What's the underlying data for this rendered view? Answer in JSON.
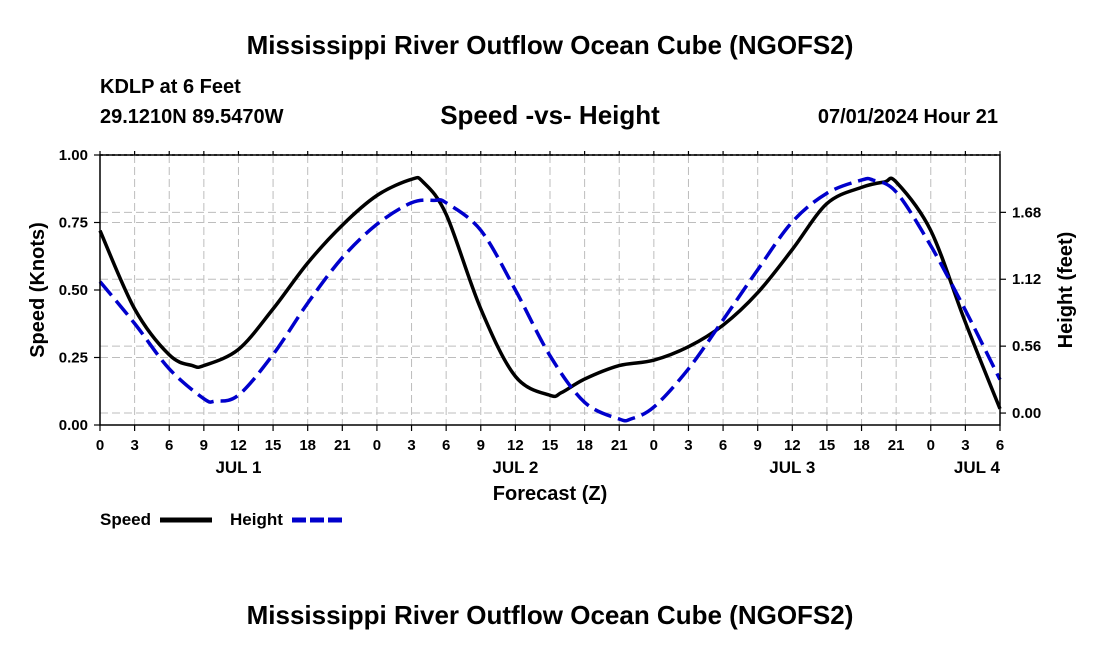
{
  "header": {
    "title": "Mississippi River Outflow Ocean Cube (NGOFS2)",
    "station": "KDLP at 6 Feet",
    "coords": "29.1210N  89.5470W",
    "subtitle": "Speed -vs- Height",
    "datetime": "07/01/2024 Hour 21"
  },
  "footer": {
    "title": "Mississippi River Outflow Ocean Cube (NGOFS2)"
  },
  "chart_data": {
    "type": "line",
    "title": "Speed -vs- Height",
    "xlabel": "Forecast (Z)",
    "ylabel": "Speed (Knots)",
    "y2label": "Height (feet)",
    "x_unit": "hours since JUL 1 00Z",
    "xlim": [
      0,
      78
    ],
    "ylim": [
      0,
      1.0
    ],
    "y2lim": [
      -0.1,
      2.16
    ],
    "x_ticks": [
      0,
      3,
      6,
      9,
      12,
      15,
      18,
      21,
      24,
      27,
      30,
      33,
      36,
      39,
      42,
      45,
      48,
      51,
      54,
      57,
      60,
      63,
      66,
      69,
      72,
      75,
      78
    ],
    "x_tick_labels": [
      "0",
      "3",
      "6",
      "9",
      "12",
      "15",
      "18",
      "21",
      "0",
      "3",
      "6",
      "9",
      "12",
      "15",
      "18",
      "21",
      "0",
      "3",
      "6",
      "9",
      "12",
      "15",
      "18",
      "21",
      "0",
      "3",
      "6"
    ],
    "date_labels": [
      {
        "x": 12,
        "label": "JUL 1"
      },
      {
        "x": 36,
        "label": "JUL 2"
      },
      {
        "x": 60,
        "label": "JUL 3"
      },
      {
        "x": 76,
        "label": "JUL 4"
      }
    ],
    "y_ticks": [
      0,
      0.25,
      0.5,
      0.75,
      1.0
    ],
    "y_tick_labels": [
      "0.00",
      "0.25",
      "0.50",
      "0.75",
      "1.00"
    ],
    "y2_ticks": [
      0,
      0.56,
      1.12,
      1.68
    ],
    "y2_tick_labels": [
      "0.00",
      "0.56",
      "1.12",
      "1.68"
    ],
    "grid": true,
    "legend_position": "bottom-left",
    "series": [
      {
        "name": "Speed",
        "axis": "left",
        "color": "#000000",
        "dash": "solid",
        "x": [
          0,
          3,
          6,
          8,
          9,
          12,
          15,
          18,
          21,
          24,
          27,
          28,
          30,
          33,
          36,
          39,
          40,
          42,
          45,
          48,
          51,
          54,
          57,
          60,
          63,
          66,
          68,
          69,
          72,
          75,
          78
        ],
        "values": [
          0.72,
          0.43,
          0.26,
          0.22,
          0.22,
          0.28,
          0.43,
          0.6,
          0.74,
          0.85,
          0.91,
          0.9,
          0.78,
          0.43,
          0.18,
          0.11,
          0.12,
          0.17,
          0.22,
          0.24,
          0.29,
          0.37,
          0.49,
          0.65,
          0.82,
          0.88,
          0.9,
          0.9,
          0.72,
          0.38,
          0.06
        ]
      },
      {
        "name": "Height",
        "axis": "right",
        "color": "#0000cc",
        "dash": "dashed",
        "x": [
          0,
          3,
          6,
          9,
          10,
          12,
          15,
          18,
          21,
          24,
          27,
          29,
          30,
          33,
          36,
          39,
          42,
          45,
          46,
          48,
          51,
          54,
          57,
          60,
          63,
          66,
          67,
          69,
          72,
          75,
          78
        ],
        "values": [
          1.1,
          0.75,
          0.37,
          0.12,
          0.1,
          0.15,
          0.49,
          0.92,
          1.3,
          1.58,
          1.76,
          1.78,
          1.76,
          1.53,
          1.03,
          0.48,
          0.09,
          -0.05,
          -0.05,
          0.05,
          0.37,
          0.78,
          1.2,
          1.6,
          1.84,
          1.95,
          1.95,
          1.85,
          1.4,
          0.86,
          0.28
        ]
      }
    ]
  }
}
